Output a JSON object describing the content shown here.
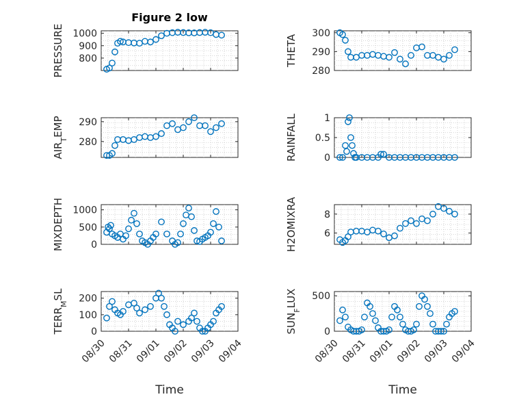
{
  "figure": {
    "title": "Figure 2 low",
    "xlabel": "Time",
    "marker_color": "#0072BD",
    "x_tick_labels": [
      "08/30",
      "08/31",
      "09/01",
      "09/02",
      "09/03",
      "09/04"
    ]
  },
  "chart_data": [
    {
      "type": "scatter",
      "title": "Figure 2 low",
      "ylabel": "PRESSURE",
      "ylim": [
        700,
        1020
      ],
      "yticks": [
        800,
        900,
        1000
      ],
      "xlim": [
        0,
        5
      ],
      "grid": true,
      "x": [
        0.2,
        0.3,
        0.4,
        0.5,
        0.6,
        0.7,
        0.8,
        1.0,
        1.2,
        1.4,
        1.6,
        1.8,
        2.0,
        2.2,
        2.4,
        2.6,
        2.8,
        3.0,
        3.2,
        3.4,
        3.6,
        3.8,
        4.0,
        4.2,
        4.4
      ],
      "y": [
        710,
        720,
        760,
        850,
        920,
        935,
        930,
        925,
        922,
        920,
        935,
        930,
        950,
        980,
        1000,
        1005,
        1008,
        1006,
        1004,
        1003,
        1006,
        1008,
        1005,
        990,
        985
      ]
    },
    {
      "type": "scatter",
      "ylabel": "THETA",
      "ylim": [
        280,
        301
      ],
      "yticks": [
        280,
        290,
        300
      ],
      "xlim": [
        0,
        5
      ],
      "grid": true,
      "x": [
        0.2,
        0.3,
        0.4,
        0.5,
        0.6,
        0.8,
        1.0,
        1.2,
        1.4,
        1.6,
        1.8,
        2.0,
        2.2,
        2.4,
        2.6,
        2.8,
        3.0,
        3.2,
        3.4,
        3.6,
        3.8,
        4.0,
        4.2,
        4.4
      ],
      "y": [
        300,
        299,
        296,
        290,
        287,
        287,
        288,
        288,
        288.5,
        288,
        287.5,
        287,
        289.5,
        286,
        283.5,
        288,
        292,
        292.5,
        288,
        288,
        287,
        286,
        288,
        291
      ]
    },
    {
      "type": "scatter",
      "ylabel": "AIR_TEMP",
      "ylim": [
        272,
        292
      ],
      "yticks": [
        280,
        290
      ],
      "xlim": [
        0,
        5
      ],
      "grid": true,
      "x": [
        0.2,
        0.3,
        0.4,
        0.5,
        0.6,
        0.8,
        1.0,
        1.2,
        1.4,
        1.6,
        1.8,
        2.0,
        2.2,
        2.4,
        2.6,
        2.8,
        3.0,
        3.2,
        3.4,
        3.6,
        3.8,
        4.0,
        4.2,
        4.4
      ],
      "y": [
        273,
        273,
        274,
        278,
        281,
        281,
        280.5,
        281,
        282,
        282.5,
        282,
        282.5,
        284,
        288,
        289,
        286,
        287,
        290,
        292,
        288,
        288,
        285,
        287,
        289
      ]
    },
    {
      "type": "scatter",
      "ylabel": "RAINFALL",
      "ylim": [
        0,
        1
      ],
      "yticks": [
        0,
        0.5,
        1
      ],
      "xlim": [
        0,
        5
      ],
      "grid": true,
      "x": [
        0.2,
        0.3,
        0.4,
        0.45,
        0.5,
        0.55,
        0.6,
        0.65,
        0.7,
        0.75,
        0.8,
        1.0,
        1.2,
        1.4,
        1.6,
        1.7,
        1.8,
        2.0,
        2.2,
        2.4,
        2.6,
        2.8,
        3.0,
        3.2,
        3.4,
        3.6,
        3.8,
        4.0,
        4.2,
        4.4
      ],
      "y": [
        0,
        0,
        0.3,
        0.15,
        0.9,
        1.0,
        0.5,
        0.3,
        0.1,
        0,
        0,
        0,
        0,
        0,
        0,
        0.08,
        0.08,
        0,
        0,
        0,
        0,
        0,
        0,
        0,
        0,
        0,
        0,
        0,
        0,
        0
      ]
    },
    {
      "type": "scatter",
      "ylabel": "MIXDEPTH",
      "ylim": [
        0,
        1150
      ],
      "yticks": [
        0,
        500,
        1000
      ],
      "xlim": [
        0,
        5
      ],
      "grid": true,
      "x": [
        0.2,
        0.25,
        0.3,
        0.35,
        0.4,
        0.5,
        0.6,
        0.7,
        0.8,
        0.9,
        1.0,
        1.1,
        1.2,
        1.3,
        1.4,
        1.5,
        1.6,
        1.7,
        1.8,
        1.9,
        2.0,
        2.2,
        2.4,
        2.6,
        2.7,
        2.8,
        2.9,
        3.0,
        3.1,
        3.2,
        3.3,
        3.4,
        3.5,
        3.6,
        3.7,
        3.8,
        3.9,
        4.0,
        4.1,
        4.2,
        4.3,
        4.4
      ],
      "y": [
        350,
        500,
        450,
        550,
        300,
        250,
        200,
        300,
        150,
        250,
        450,
        700,
        900,
        600,
        300,
        100,
        50,
        0,
        100,
        200,
        300,
        650,
        300,
        100,
        0,
        50,
        300,
        600,
        850,
        1050,
        800,
        400,
        100,
        80,
        150,
        200,
        250,
        350,
        600,
        950,
        500,
        100
      ]
    },
    {
      "type": "scatter",
      "ylabel": "H2OMIXRA",
      "ylim": [
        4.8,
        9
      ],
      "yticks": [
        6,
        8
      ],
      "xlim": [
        0,
        5
      ],
      "grid": true,
      "x": [
        0.2,
        0.3,
        0.4,
        0.5,
        0.6,
        0.8,
        1.0,
        1.2,
        1.4,
        1.6,
        1.8,
        2.0,
        2.2,
        2.4,
        2.6,
        2.8,
        3.0,
        3.2,
        3.4,
        3.6,
        3.8,
        4.0,
        4.2,
        4.4
      ],
      "y": [
        5.3,
        5.0,
        5.2,
        5.6,
        6.1,
        6.2,
        6.2,
        6.1,
        6.3,
        6.2,
        5.9,
        5.5,
        5.7,
        6.5,
        7.0,
        7.3,
        7.0,
        7.5,
        7.3,
        8.0,
        8.8,
        8.6,
        8.3,
        8.0
      ]
    },
    {
      "type": "scatter",
      "ylabel": "TERR_MSL",
      "ylim": [
        0,
        240
      ],
      "yticks": [
        0,
        100,
        200
      ],
      "xlim": [
        0,
        5
      ],
      "grid": true,
      "x": [
        0.2,
        0.3,
        0.4,
        0.5,
        0.6,
        0.7,
        0.8,
        1.0,
        1.2,
        1.3,
        1.4,
        1.6,
        1.8,
        2.0,
        2.1,
        2.2,
        2.3,
        2.4,
        2.5,
        2.6,
        2.7,
        2.8,
        3.0,
        3.2,
        3.3,
        3.4,
        3.5,
        3.6,
        3.7,
        3.8,
        3.9,
        4.0,
        4.1,
        4.2,
        4.3,
        4.4
      ],
      "y": [
        80,
        150,
        180,
        130,
        110,
        100,
        120,
        160,
        170,
        140,
        110,
        130,
        150,
        200,
        230,
        200,
        150,
        100,
        40,
        20,
        0,
        60,
        40,
        60,
        80,
        110,
        60,
        20,
        0,
        0,
        20,
        40,
        60,
        110,
        130,
        150
      ]
    },
    {
      "type": "scatter",
      "ylabel": "SUN_FLUX",
      "ylim": [
        0,
        560
      ],
      "yticks": [
        0,
        500
      ],
      "xlim": [
        0,
        5
      ],
      "grid": true,
      "x": [
        0.2,
        0.3,
        0.4,
        0.5,
        0.6,
        0.7,
        0.8,
        0.9,
        1.0,
        1.1,
        1.2,
        1.3,
        1.4,
        1.5,
        1.6,
        1.7,
        1.8,
        1.9,
        2.0,
        2.1,
        2.2,
        2.3,
        2.4,
        2.5,
        2.6,
        2.7,
        2.8,
        2.9,
        3.0,
        3.1,
        3.2,
        3.3,
        3.4,
        3.5,
        3.6,
        3.7,
        3.8,
        3.9,
        4.0,
        4.1,
        4.2,
        4.3,
        4.4
      ],
      "y": [
        150,
        300,
        200,
        60,
        20,
        0,
        0,
        0,
        20,
        200,
        400,
        350,
        250,
        150,
        50,
        0,
        0,
        0,
        20,
        200,
        350,
        300,
        200,
        100,
        20,
        0,
        0,
        20,
        100,
        350,
        500,
        450,
        350,
        250,
        100,
        0,
        0,
        0,
        0,
        100,
        200,
        250,
        280
      ]
    }
  ]
}
